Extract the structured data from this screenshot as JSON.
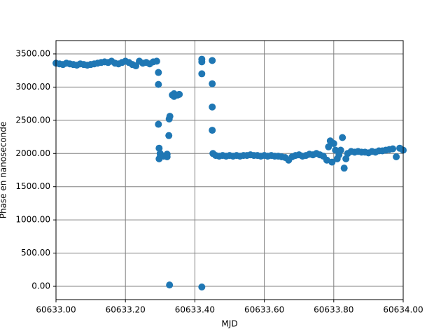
{
  "chart_data": {
    "type": "scatter",
    "x_label": "MJD",
    "y_label": "Phase en nanoseconde",
    "color": "#1f77b4",
    "grid": true,
    "xlim": [
      60633.0,
      60634.0
    ],
    "ylim": [
      -200,
      3700
    ],
    "xticks": [
      {
        "value": 60633.0,
        "label": "60633.00"
      },
      {
        "value": 60633.2,
        "label": "60633.20"
      },
      {
        "value": 60633.4,
        "label": "60633.40"
      },
      {
        "value": 60633.6,
        "label": "60633.60"
      },
      {
        "value": 60633.8,
        "label": "60633.80"
      },
      {
        "value": 60634.0,
        "label": "60634.00"
      }
    ],
    "yticks": [
      {
        "value": 0,
        "label": "0.00"
      },
      {
        "value": 500,
        "label": "500.00"
      },
      {
        "value": 1000,
        "label": "1000.00"
      },
      {
        "value": 1500,
        "label": "1500.00"
      },
      {
        "value": 2000,
        "label": "2000.00"
      },
      {
        "value": 2500,
        "label": "2500.00"
      },
      {
        "value": 3000,
        "label": "3000.00"
      },
      {
        "value": 3500,
        "label": "3500.00"
      }
    ],
    "x": [
      60633.0,
      60633.01,
      60633.02,
      60633.03,
      60633.04,
      60633.05,
      60633.06,
      60633.07,
      60633.08,
      60633.09,
      60633.1,
      60633.11,
      60633.12,
      60633.13,
      60633.14,
      60633.15,
      60633.16,
      60633.17,
      60633.18,
      60633.19,
      60633.2,
      60633.21,
      60633.22,
      60633.23,
      60633.24,
      60633.25,
      60633.26,
      60633.27,
      60633.28,
      60633.29,
      60633.295,
      60633.295,
      60633.295,
      60633.297,
      60633.297,
      60633.3,
      60633.3,
      60633.31,
      60633.32,
      60633.32,
      60633.325,
      60633.326,
      60633.328,
      60633.327,
      60633.335,
      60633.34,
      60633.34,
      60633.35,
      60633.355,
      60633.42,
      60633.42,
      60633.42,
      60633.42,
      60633.45,
      60633.45,
      60633.45,
      60633.45,
      60633.452,
      60633.46,
      60633.47,
      60633.48,
      60633.49,
      60633.5,
      60633.51,
      60633.52,
      60633.53,
      60633.54,
      60633.55,
      60633.56,
      60633.57,
      60633.58,
      60633.59,
      60633.6,
      60633.61,
      60633.62,
      60633.63,
      60633.64,
      60633.65,
      60633.66,
      60633.67,
      60633.68,
      60633.69,
      60633.7,
      60633.71,
      60633.72,
      60633.73,
      60633.74,
      60633.75,
      60633.76,
      60633.77,
      60633.78,
      60633.785,
      60633.79,
      60633.795,
      60633.8,
      60633.805,
      60633.81,
      60633.815,
      60633.82,
      60633.825,
      60633.83,
      60633.835,
      60633.84,
      60633.85,
      60633.86,
      60633.87,
      60633.88,
      60633.89,
      60633.9,
      60633.91,
      60633.92,
      60633.93,
      60633.94,
      60633.95,
      60633.96,
      60633.97,
      60633.98,
      60633.99,
      60634.0
    ],
    "values": [
      3360,
      3350,
      3340,
      3360,
      3350,
      3340,
      3330,
      3350,
      3340,
      3330,
      3340,
      3350,
      3360,
      3370,
      3380,
      3370,
      3390,
      3360,
      3350,
      3370,
      3390,
      3370,
      3340,
      3320,
      3390,
      3360,
      3370,
      3350,
      3380,
      3390,
      3220,
      3040,
      2440,
      2080,
      1920,
      1950,
      2000,
      1960,
      1950,
      1990,
      2270,
      2520,
      2560,
      20,
      2880,
      2900,
      2860,
      2880,
      2890,
      3420,
      3380,
      3200,
      -10,
      3400,
      3050,
      2700,
      2350,
      2000,
      1970,
      1960,
      1970,
      1960,
      1970,
      1960,
      1970,
      1960,
      1970,
      1970,
      1980,
      1970,
      1970,
      1960,
      1970,
      1960,
      1970,
      1960,
      1960,
      1950,
      1940,
      1900,
      1950,
      1970,
      1980,
      1960,
      1970,
      1990,
      1980,
      2000,
      1980,
      1960,
      1900,
      2100,
      2190,
      1870,
      2150,
      2050,
      1920,
      1980,
      2050,
      2240,
      1780,
      1920,
      2000,
      2030,
      2020,
      2030,
      2020,
      2020,
      2010,
      2030,
      2020,
      2040,
      2040,
      2050,
      2060,
      2070,
      1950,
      2080,
      2050
    ]
  }
}
